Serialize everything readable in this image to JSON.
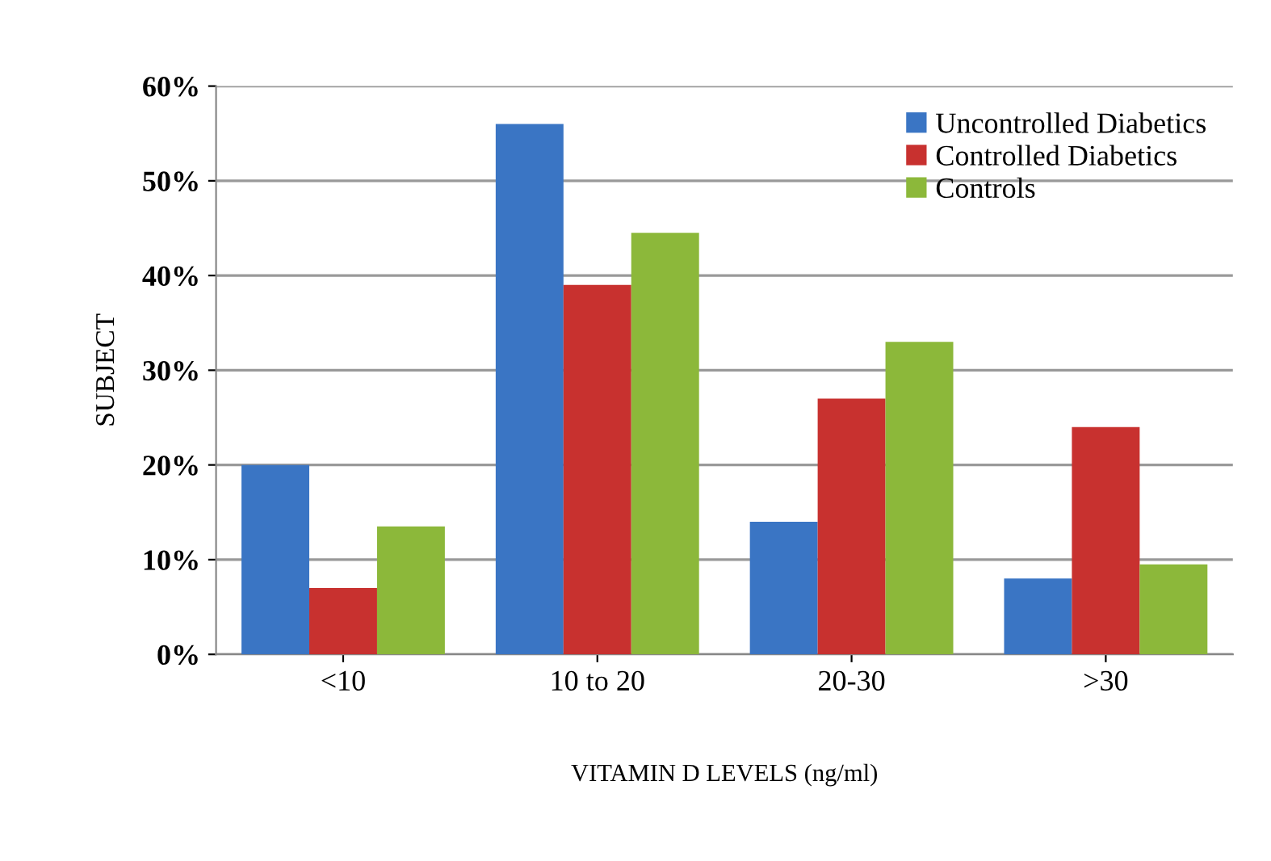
{
  "chart_data": {
    "type": "bar",
    "xlabel": "VITAMIN D LEVELS (ng/ml)",
    "ylabel": "SUBJECT",
    "categories": [
      "<10",
      "10 to 20",
      "20-30",
      ">30"
    ],
    "series": [
      {
        "name": "Uncontrolled Diabetics",
        "color": "#3a75c4",
        "values": [
          20,
          56,
          14,
          8
        ]
      },
      {
        "name": "Controlled Diabetics",
        "color": "#c8312f",
        "values": [
          7,
          39,
          27,
          24
        ]
      },
      {
        "name": "Controls",
        "color": "#8cb83a",
        "values": [
          13.5,
          44.5,
          33,
          9.5
        ]
      }
    ],
    "ylim": [
      0,
      60
    ],
    "yticks": [
      {
        "value": 0,
        "label": "0%"
      },
      {
        "value": 10,
        "label": "10%"
      },
      {
        "value": 20,
        "label": "20%"
      },
      {
        "value": 30,
        "label": "30%"
      },
      {
        "value": 40,
        "label": "40%"
      },
      {
        "value": 50,
        "label": "50%"
      },
      {
        "value": 60,
        "label": "60%"
      }
    ],
    "grid": "y",
    "legend": "top right"
  }
}
